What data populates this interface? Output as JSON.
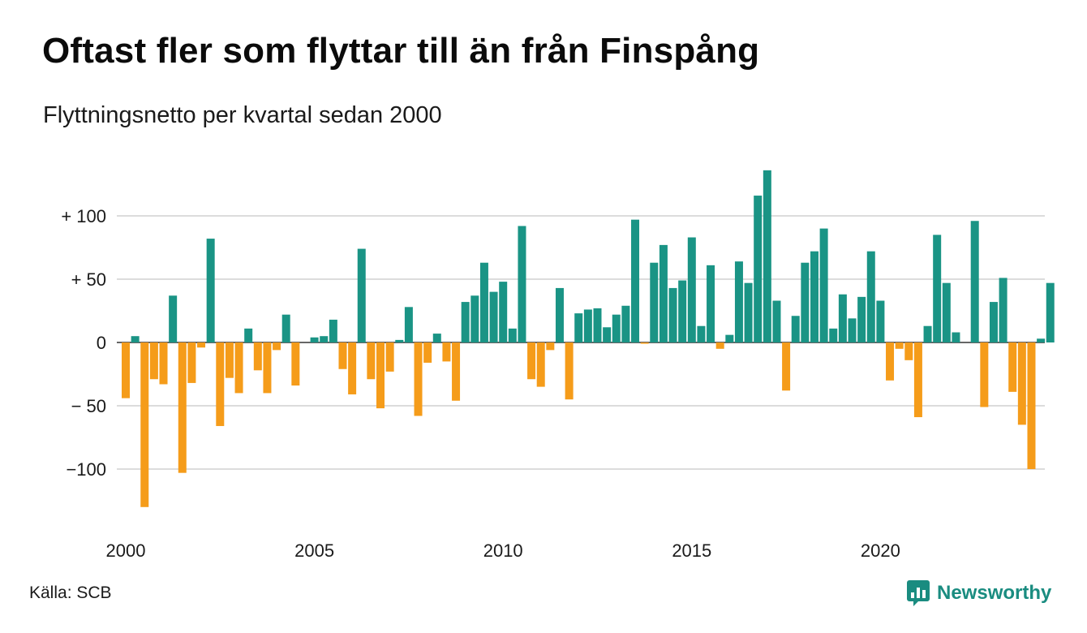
{
  "header": {
    "title": "Oftast fler som flyttar till än från Finspång",
    "subtitle": "Flyttningsnetto per kvartal sedan 2000"
  },
  "footer": {
    "source": "Källa: SCB",
    "brand": "Newsworthy",
    "brand_icon": "bar-chart-speech-bubble-icon"
  },
  "colors": {
    "positive": "#1a9485",
    "negative": "#f59c1a",
    "grid": "#dcdcdc",
    "brand": "#1a8c80"
  },
  "chart_data": {
    "type": "bar",
    "title": "Oftast fler som flyttar till än från Finspång",
    "subtitle": "Flyttningsnetto per kvartal sedan 2000",
    "xlabel": "",
    "ylabel": "",
    "x_start": "2000-Q1",
    "x_ticks": [
      "2000",
      "2005",
      "2010",
      "2015",
      "2020"
    ],
    "y_ticks": [
      {
        "value": 100,
        "label": "+ 100"
      },
      {
        "value": 50,
        "label": "+  50"
      },
      {
        "value": 0,
        "label": "0"
      },
      {
        "value": -50,
        "label": "− 50"
      },
      {
        "value": -100,
        "label": "−100"
      }
    ],
    "ylim": [
      -140,
      140
    ],
    "grid": true,
    "color_rule": "positive values teal, negative values orange",
    "values": [
      -44,
      5,
      -130,
      -29,
      -33,
      37,
      -103,
      -32,
      -4,
      82,
      -66,
      -28,
      -40,
      11,
      -22,
      -40,
      -6,
      22,
      -34,
      0,
      4,
      5,
      18,
      -21,
      -41,
      74,
      -29,
      -52,
      -23,
      2,
      28,
      -58,
      -16,
      7,
      -15,
      -46,
      32,
      37,
      63,
      40,
      48,
      11,
      92,
      -29,
      -35,
      -6,
      43,
      -45,
      23,
      26,
      27,
      12,
      22,
      29,
      97,
      -1,
      63,
      77,
      43,
      49,
      83,
      13,
      61,
      -5,
      6,
      64,
      47,
      116,
      136,
      33,
      -38,
      21,
      63,
      72,
      90,
      11,
      38,
      19,
      36,
      72,
      33,
      -30,
      -5,
      -14,
      -59,
      13,
      85,
      47,
      8,
      0,
      96,
      -51,
      32,
      51,
      -39,
      -65,
      -100,
      3,
      47
    ]
  }
}
